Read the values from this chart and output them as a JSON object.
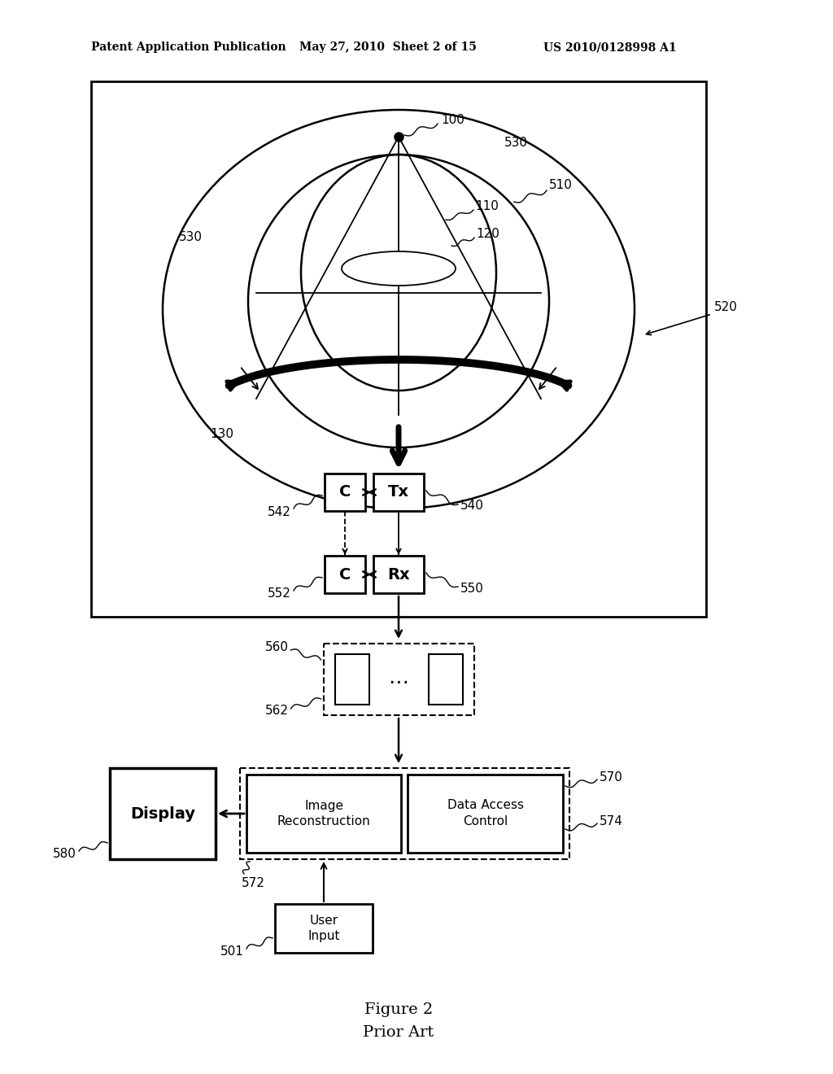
{
  "header_left": "Patent Application Publication",
  "header_mid": "May 27, 2010  Sheet 2 of 15",
  "header_right": "US 2010/0128998 A1",
  "caption_line1": "Figure 2",
  "caption_line2": "Prior Art",
  "bg_color": "#ffffff"
}
